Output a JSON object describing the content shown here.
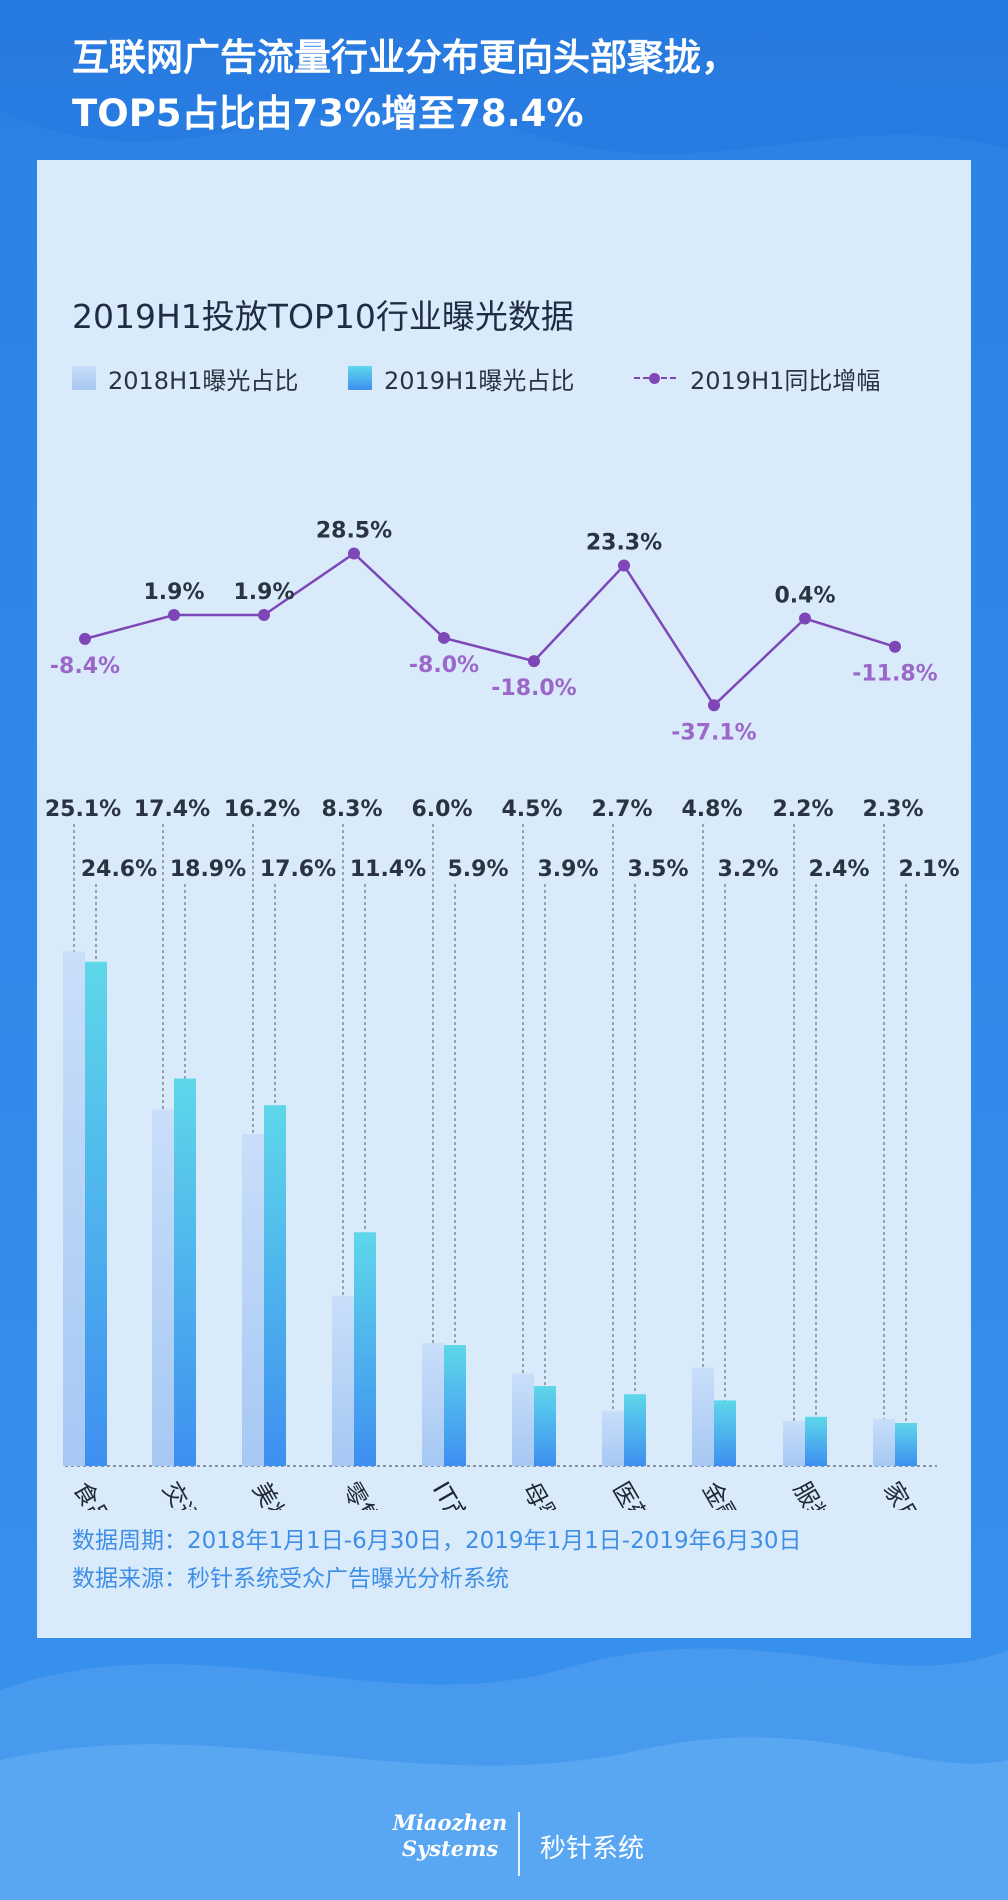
{
  "headline": {
    "line1": "互联网广告流量行业分布更向头部聚拢，",
    "line2": "TOP5占比由73%增至78.4%"
  },
  "chart_title": "2019H1投放TOP10行业曝光数据",
  "legend": {
    "items": [
      "2018H1曝光占比",
      "2019H1曝光占比",
      "2019H1同比增幅"
    ]
  },
  "colors": {
    "background": "#2f86e8",
    "card": "#d9ebfb",
    "bar_2018_top": "#c9defa",
    "bar_2018_bottom": "#a6c8f3",
    "bar_2019_top": "#5ed7ea",
    "bar_2019_bottom": "#3e8ff0",
    "growth_line": "#7e47b7",
    "growth_label": "#9b68c9",
    "value_label": "#2a3340",
    "footnote": "#3f8ee6"
  },
  "chart_data": {
    "type": "bar",
    "categories": [
      "食品饮料类",
      "交通工具类",
      "美妆个护类",
      "零售及服务类",
      "IT产品类",
      "母婴用品类",
      "医药保健类",
      "金融理财类",
      "服装服饰类",
      "家用电器类"
    ],
    "series": [
      {
        "name": "2018H1曝光占比",
        "type": "bar",
        "values": [
          25.1,
          17.4,
          16.2,
          8.3,
          6.0,
          4.5,
          2.7,
          4.8,
          2.2,
          2.3
        ],
        "labels": [
          "25.1%",
          "17.4%",
          "16.2%",
          "8.3%",
          "6.0%",
          "4.5%",
          "2.7%",
          "4.8%",
          "2.2%",
          "2.3%"
        ]
      },
      {
        "name": "2019H1曝光占比",
        "type": "bar",
        "values": [
          24.6,
          18.9,
          17.6,
          11.4,
          5.9,
          3.9,
          3.5,
          3.2,
          2.4,
          2.1
        ],
        "labels": [
          "24.6%",
          "18.9%",
          "17.6%",
          "11.4%",
          "5.9%",
          "3.9%",
          "3.5%",
          "3.2%",
          "2.4%",
          "2.1%"
        ]
      },
      {
        "name": "2019H1同比增幅",
        "type": "line",
        "values": [
          -8.4,
          1.9,
          1.9,
          28.5,
          -8.0,
          -18.0,
          23.3,
          -37.1,
          0.4,
          -11.8
        ],
        "labels": [
          "-8.4%",
          "1.9%",
          "1.9%",
          "28.5%",
          "-8.0%",
          "-18.0%",
          "23.3%",
          "-37.1%",
          "0.4%",
          "-11.8%"
        ],
        "label_position": [
          "below",
          "above",
          "above",
          "above",
          "below",
          "below",
          "above",
          "below",
          "above",
          "below"
        ]
      }
    ],
    "bar_ylim": [
      0,
      26
    ],
    "line_ylim": [
      -40,
      30
    ],
    "grid": false,
    "legend_position": "top-left"
  },
  "footnote": {
    "period": "数据周期：2018年1月1日-6月30日，2019年1月1日-2019年6月30日",
    "source": "数据来源：秒针系统受众广告曝光分析系统"
  },
  "brand": {
    "logo_line1": "Miaozhen",
    "logo_line2": "Systems",
    "name": "秒针系统"
  }
}
